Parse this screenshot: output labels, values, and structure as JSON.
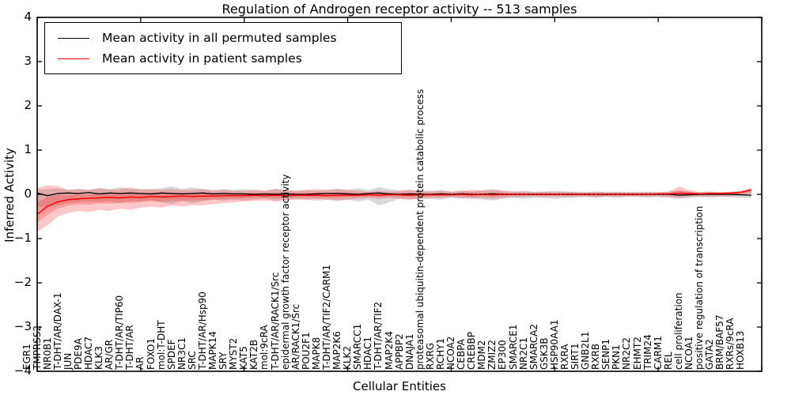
{
  "title": "Regulation of Androgen receptor activity -- 513 samples",
  "axes": {
    "ylabel": "Inferred Activity",
    "xlabel": "Cellular Entities",
    "ytick_labels": [
      "4",
      "3",
      "2",
      "1",
      "0",
      "−1",
      "−2",
      "−3",
      "−4"
    ],
    "ytick_values": [
      4,
      3,
      2,
      1,
      0,
      -1,
      -2,
      -3,
      -4
    ],
    "xtick_positions": [
      0,
      10,
      20,
      30,
      40,
      50,
      60,
      70
    ]
  },
  "legend": {
    "items": [
      {
        "label": "Mean activity in all permuted samples",
        "color": "#000000"
      },
      {
        "label": "Mean activity in patient samples",
        "color": "#ff0000"
      }
    ]
  },
  "chart_data": {
    "type": "line",
    "title": "Regulation of Androgen receptor activity -- 513 samples",
    "xlabel": "Cellular Entities",
    "ylabel": "Inferred Activity",
    "ylim": [
      -4,
      4
    ],
    "grid": false,
    "legend_position": "upper left",
    "categories": [
      "EGR1",
      "TMPRSS2",
      "NR0B1",
      "T-DHT/AR/DAX-1",
      "JUN",
      "PDE9A",
      "HDAC7",
      "KLK3",
      "AR/GR",
      "T-DHT/AR/TIP60",
      "T-DHT/AR",
      "AR",
      "FOXO1",
      "mol:T-DHT",
      "SPDEF",
      "NR3C1",
      "SRC",
      "T-DHT/AR/Hsp90",
      "MAPK14",
      "SRY",
      "MYST2",
      "KAT5",
      "KAT2B",
      "mol:9cRA",
      "T-DHT/AR/RACK1/Src",
      "epidermal growth factor receptor activity",
      "AR/RACK1/Src",
      "POU2F1",
      "MAPK8",
      "T-DHT/AR/TIF2/CARM1",
      "MAP2K6",
      "KLK2",
      "SMARCC1",
      "HDAC1",
      "T-DHT/AR/TIF2",
      "MAP2K4",
      "APPBP2",
      "DNAJA1",
      "proteasomal ubiquitin-dependent protein catabolic process",
      "RXRG",
      "RCHY1",
      "NCOA2",
      "CEBPA",
      "CREBBP",
      "MDM2",
      "ZMIZ2",
      "EP300",
      "SMARCE1",
      "NR2C1",
      "SMARCA2",
      "GSK3B",
      "HSP90AA1",
      "RXRA",
      "SIRT1",
      "GNB2L1",
      "RXRB",
      "SENP1",
      "PKN1",
      "NR2C2",
      "EHMT2",
      "TRIM24",
      "CARM1",
      "REL",
      "cell proliferation",
      "NCOA1",
      "positive regulation of transcription",
      "GATA2",
      "BRM/BAF57",
      "RXRs/9cRA",
      "HOXB13"
    ],
    "series": [
      {
        "name": "Mean activity in all permuted samples",
        "color": "#000000",
        "band_color": "rgba(0,0,0,0.15)",
        "values": [
          0.03,
          -0.03,
          0.02,
          0.03,
          0.02,
          0.04,
          0.01,
          0.03,
          0.02,
          0.03,
          0.02,
          0.01,
          0.03,
          0.02,
          0.01,
          0.02,
          0.03,
          0.01,
          0.02,
          0.01,
          0.01,
          0.0,
          0.01,
          0.0,
          0.01,
          0.0,
          0.0,
          0.01,
          0.02,
          0.02,
          0.01,
          0.0,
          0.02,
          0.03,
          0.01,
          0.0,
          0.01,
          0.0,
          0.0,
          0.01,
          0.0,
          0.01,
          0.0,
          0.0,
          0.01,
          0.0,
          0.0,
          0.0,
          0.0,
          0.0,
          0.0,
          0.0,
          0.0,
          0.0,
          0.0,
          0.0,
          0.0,
          0.0,
          0.0,
          0.0,
          0.0,
          0.0,
          -0.02,
          -0.01,
          0.0,
          0.0,
          0.0,
          0.0,
          -0.01,
          -0.02
        ],
        "band_upper": [
          0.1,
          0.12,
          0.13,
          0.1,
          0.12,
          0.1,
          0.14,
          0.12,
          0.16,
          0.12,
          0.13,
          0.11,
          0.14,
          0.18,
          0.12,
          0.16,
          0.12,
          0.1,
          0.12,
          0.1,
          0.12,
          0.1,
          0.08,
          0.12,
          0.1,
          0.08,
          0.1,
          0.08,
          0.1,
          0.12,
          0.1,
          0.14,
          0.1,
          0.16,
          0.12,
          0.08,
          0.1,
          0.08,
          0.08,
          0.1,
          0.06,
          0.08,
          0.06,
          0.1,
          0.12,
          0.08,
          0.06,
          0.08,
          0.06,
          0.06,
          0.08,
          0.06,
          0.06,
          0.05,
          0.06,
          0.05,
          0.06,
          0.05,
          0.05,
          0.06,
          0.05,
          0.06,
          0.08,
          0.06,
          0.05,
          0.06,
          0.05,
          0.05,
          0.06,
          0.06
        ],
        "band_lower": [
          -0.28,
          -0.3,
          -0.25,
          -0.2,
          -0.18,
          -0.16,
          -0.18,
          -0.15,
          -0.2,
          -0.15,
          -0.16,
          -0.13,
          -0.18,
          -0.22,
          -0.15,
          -0.2,
          -0.15,
          -0.12,
          -0.14,
          -0.12,
          -0.14,
          -0.12,
          -0.1,
          -0.14,
          -0.12,
          -0.1,
          -0.12,
          -0.1,
          -0.12,
          -0.14,
          -0.12,
          -0.16,
          -0.12,
          -0.25,
          -0.18,
          -0.1,
          -0.12,
          -0.1,
          -0.1,
          -0.12,
          -0.08,
          -0.1,
          -0.08,
          -0.12,
          -0.14,
          -0.1,
          -0.08,
          -0.1,
          -0.08,
          -0.08,
          -0.1,
          -0.08,
          -0.08,
          -0.06,
          -0.08,
          -0.06,
          -0.08,
          -0.06,
          -0.06,
          -0.08,
          -0.06,
          -0.08,
          -0.1,
          -0.08,
          -0.06,
          -0.08,
          -0.06,
          -0.06,
          -0.08,
          -0.08
        ]
      },
      {
        "name": "Mean activity in patient samples",
        "color": "#ff0000",
        "band_color": "rgba(255,0,0,0.22)",
        "values": [
          -0.45,
          -0.27,
          -0.17,
          -0.12,
          -0.1,
          -0.09,
          -0.08,
          -0.07,
          -0.08,
          -0.06,
          -0.07,
          -0.05,
          -0.06,
          -0.05,
          -0.04,
          -0.05,
          -0.04,
          -0.04,
          -0.03,
          -0.03,
          -0.03,
          -0.02,
          -0.03,
          -0.02,
          -0.03,
          -0.02,
          -0.02,
          -0.02,
          -0.03,
          -0.02,
          -0.02,
          -0.02,
          -0.01,
          -0.02,
          -0.01,
          -0.01,
          -0.02,
          -0.01,
          -0.01,
          -0.01,
          -0.01,
          0.0,
          -0.01,
          0.0,
          -0.01,
          0.0,
          0.0,
          0.0,
          0.0,
          0.0,
          0.0,
          0.0,
          0.0,
          0.0,
          0.0,
          0.0,
          0.0,
          0.0,
          0.0,
          0.0,
          0.01,
          0.01,
          0.02,
          0.02,
          0.01,
          0.02,
          0.02,
          0.03,
          0.05,
          0.1
        ],
        "band_upper": [
          0.15,
          0.2,
          0.18,
          0.1,
          0.12,
          0.1,
          0.14,
          0.1,
          0.12,
          0.16,
          0.1,
          0.12,
          0.1,
          0.12,
          0.1,
          0.1,
          0.12,
          0.08,
          0.1,
          0.08,
          0.08,
          0.1,
          0.08,
          0.12,
          0.1,
          0.08,
          0.1,
          0.12,
          0.1,
          0.12,
          0.1,
          0.08,
          0.06,
          0.08,
          0.06,
          0.08,
          0.1,
          0.08,
          0.06,
          0.08,
          0.06,
          0.08,
          0.1,
          0.08,
          0.1,
          0.08,
          0.06,
          0.06,
          0.05,
          0.06,
          0.05,
          0.06,
          0.05,
          0.05,
          0.06,
          0.05,
          0.05,
          0.05,
          0.05,
          0.05,
          0.05,
          0.06,
          0.18,
          0.1,
          0.05,
          0.06,
          0.05,
          0.06,
          0.08,
          0.15
        ],
        "band_lower": [
          -0.85,
          -0.7,
          -0.5,
          -0.42,
          -0.38,
          -0.4,
          -0.35,
          -0.38,
          -0.32,
          -0.35,
          -0.3,
          -0.28,
          -0.3,
          -0.25,
          -0.28,
          -0.24,
          -0.25,
          -0.22,
          -0.2,
          -0.18,
          -0.16,
          -0.15,
          -0.14,
          -0.16,
          -0.14,
          -0.12,
          -0.12,
          -0.14,
          -0.12,
          -0.14,
          -0.12,
          -0.1,
          -0.08,
          -0.1,
          -0.08,
          -0.1,
          -0.12,
          -0.1,
          -0.08,
          -0.08,
          -0.06,
          -0.08,
          -0.1,
          -0.08,
          -0.1,
          -0.08,
          -0.06,
          -0.06,
          -0.05,
          -0.06,
          -0.05,
          -0.06,
          -0.05,
          -0.05,
          -0.06,
          -0.05,
          -0.05,
          -0.05,
          -0.05,
          -0.05,
          -0.05,
          -0.06,
          -0.08,
          -0.06,
          -0.05,
          -0.05,
          -0.05,
          -0.05,
          -0.02,
          0.02
        ]
      }
    ]
  }
}
